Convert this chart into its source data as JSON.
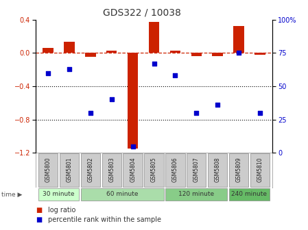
{
  "title": "GDS322 / 10038",
  "samples": [
    "GSM5800",
    "GSM5801",
    "GSM5802",
    "GSM5803",
    "GSM5804",
    "GSM5805",
    "GSM5806",
    "GSM5807",
    "GSM5808",
    "GSM5809",
    "GSM5810"
  ],
  "log_ratio": [
    0.06,
    0.13,
    -0.05,
    0.03,
    -1.15,
    0.37,
    0.03,
    -0.04,
    -0.04,
    0.32,
    -0.02
  ],
  "percentile_rank": [
    60,
    63,
    30,
    40,
    5,
    67,
    58,
    30,
    36,
    75,
    30
  ],
  "groups": [
    {
      "label": "30 minute",
      "start": 0,
      "end": 1,
      "color": "#ccffcc"
    },
    {
      "label": "60 minute",
      "start": 2,
      "end": 5,
      "color": "#aaddaa"
    },
    {
      "label": "120 minute",
      "start": 6,
      "end": 8,
      "color": "#88cc88"
    },
    {
      "label": "240 minute",
      "start": 9,
      "end": 10,
      "color": "#66bb66"
    }
  ],
  "ylim_left": [
    -1.2,
    0.4
  ],
  "ylim_right": [
    0,
    100
  ],
  "right_ticks": [
    0,
    25,
    50,
    75,
    100
  ],
  "left_ticks": [
    -1.2,
    -0.8,
    -0.4,
    0,
    0.4
  ],
  "bar_color": "#cc2200",
  "scatter_color": "#0000cc",
  "dashed_line_color": "#cc2200",
  "dotted_line_color": "#000000",
  "background_color": "#ffffff",
  "title_fontsize": 10,
  "tick_fontsize": 7,
  "label_fontsize": 7
}
